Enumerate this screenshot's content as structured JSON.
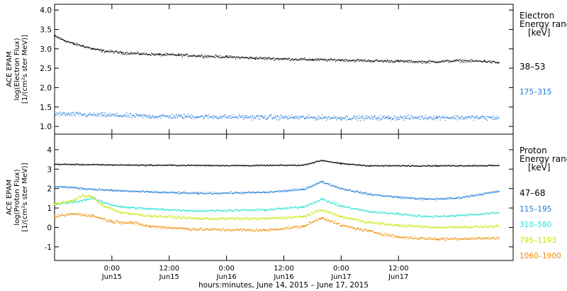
{
  "chart_data": [
    {
      "type": "scatter",
      "panel": "electron",
      "ylabel_lines": [
        "ACE EPAM",
        "log(Electron Flux)",
        "[1/(cm²s ster MeV)]"
      ],
      "ylim": [
        0.8,
        4.15
      ],
      "yticks": [
        "1.0",
        "1.5",
        "2.0",
        "2.5",
        "3.0",
        "3.5",
        "4.0"
      ],
      "legend": {
        "title_lines": [
          "Electron",
          "Energy range",
          "[keV]"
        ],
        "entries": [
          "38–53",
          "175–315"
        ]
      },
      "series": [
        {
          "name": "38–53",
          "color": "#000000",
          "x": [
            0,
            2,
            4,
            6,
            8,
            10,
            14,
            18,
            22,
            26,
            30,
            36,
            42,
            48,
            54,
            60,
            66,
            72,
            78,
            84,
            90,
            93
          ],
          "y": [
            3.33,
            3.22,
            3.13,
            3.07,
            3.0,
            2.95,
            2.9,
            2.87,
            2.85,
            2.84,
            2.82,
            2.79,
            2.76,
            2.74,
            2.72,
            2.71,
            2.69,
            2.68,
            2.66,
            2.69,
            2.68,
            2.64
          ],
          "spread": 0.05
        },
        {
          "name": "175–315",
          "color": "#1f7ad8",
          "x": [
            0,
            10,
            20,
            30,
            40,
            50,
            60,
            70,
            80,
            93
          ],
          "y": [
            1.32,
            1.29,
            1.26,
            1.25,
            1.24,
            1.23,
            1.22,
            1.22,
            1.23,
            1.22
          ],
          "spread": 0.09
        }
      ]
    },
    {
      "type": "scatter",
      "panel": "proton",
      "ylabel_lines": [
        "ACE EPAM",
        "log(Proton Flux)",
        "[1/(cm²s ster MeV)]"
      ],
      "ylim": [
        -1.7,
        4.8
      ],
      "yticks": [
        "-1",
        "0",
        "1",
        "2",
        "3",
        "4"
      ],
      "legend": {
        "title_lines": [
          "Proton",
          "Energy range",
          "[keV]"
        ],
        "entries": [
          "47–68",
          "115–195",
          "310–580",
          "795–1193",
          "1060–1900"
        ]
      },
      "series": [
        {
          "name": "47–68",
          "color": "#000000",
          "x": [
            0,
            10,
            20,
            40,
            52,
            56,
            60,
            66,
            70,
            80,
            93
          ],
          "y": [
            3.25,
            3.22,
            3.2,
            3.18,
            3.2,
            3.45,
            3.28,
            3.17,
            3.17,
            3.17,
            3.18
          ],
          "spread": 0.05
        },
        {
          "name": "115–195",
          "color": "#1f7ad8",
          "x": [
            0,
            6,
            12,
            20,
            30,
            44,
            52,
            56,
            60,
            66,
            72,
            78,
            84,
            93
          ],
          "y": [
            2.12,
            2.0,
            1.9,
            1.82,
            1.75,
            1.8,
            1.95,
            2.35,
            2.0,
            1.7,
            1.55,
            1.45,
            1.5,
            1.85
          ],
          "spread": 0.08
        },
        {
          "name": "310–580",
          "color": "#27e0d0",
          "x": [
            0,
            4,
            8,
            10,
            14,
            20,
            30,
            44,
            52,
            56,
            60,
            66,
            72,
            78,
            84,
            93
          ],
          "y": [
            1.2,
            1.3,
            1.5,
            1.3,
            1.05,
            0.95,
            0.85,
            0.9,
            1.05,
            1.45,
            1.1,
            0.8,
            0.7,
            0.55,
            0.6,
            0.75
          ],
          "spread": 0.09
        },
        {
          "name": "795–1193",
          "color": "#c8e600",
          "x": [
            0,
            4,
            6,
            8,
            10,
            14,
            20,
            30,
            44,
            52,
            56,
            60,
            66,
            72,
            80,
            93
          ],
          "y": [
            1.2,
            1.4,
            1.65,
            1.55,
            1.15,
            0.75,
            0.6,
            0.45,
            0.45,
            0.55,
            0.9,
            0.55,
            0.25,
            0.1,
            0.0,
            0.05
          ],
          "spread": 0.1
        },
        {
          "name": "1060–1900",
          "color": "#ef8a00",
          "x": [
            0,
            4,
            8,
            12,
            16,
            20,
            30,
            44,
            52,
            56,
            60,
            66,
            72,
            80,
            93
          ],
          "y": [
            0.55,
            0.7,
            0.6,
            0.3,
            0.25,
            0.05,
            -0.1,
            -0.15,
            0.05,
            0.5,
            0.1,
            -0.2,
            -0.5,
            -0.6,
            -0.55
          ],
          "spread": 0.12
        }
      ]
    }
  ],
  "x_axis": {
    "range_hours": [
      0,
      96
    ],
    "ticks": [
      {
        "hour": 12,
        "line1": "0:00",
        "line2": "Jun15"
      },
      {
        "hour": 24,
        "line1": "12:00",
        "line2": "Jun15"
      },
      {
        "hour": 36,
        "line1": "0:00",
        "line2": "Jun16"
      },
      {
        "hour": 48,
        "line1": "12:00",
        "line2": "Jun16"
      },
      {
        "hour": 60,
        "line1": "0:00",
        "line2": "Jun17"
      },
      {
        "hour": 72,
        "line1": "12:00",
        "line2": "Jun17"
      }
    ],
    "title": "hours:minutes, June 14, 2015 – June 17, 2015"
  }
}
